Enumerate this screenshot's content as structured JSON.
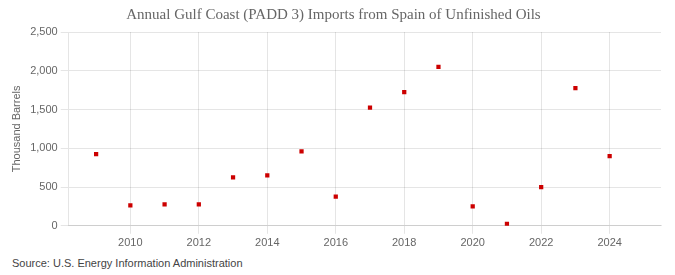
{
  "chart_data": {
    "type": "scatter",
    "title": "Annual Gulf Coast (PADD 3) Imports from Spain of Unfinished Oils",
    "ylabel": "Thousand Barrels",
    "source": "Source: U.S. Energy Information Administration",
    "x": [
      2009,
      2010,
      2011,
      2012,
      2013,
      2014,
      2015,
      2016,
      2017,
      2018,
      2019,
      2020,
      2021,
      2022,
      2023,
      2024
    ],
    "values": [
      925,
      262,
      275,
      275,
      625,
      650,
      960,
      375,
      1525,
      1725,
      2050,
      250,
      25,
      500,
      1775,
      900
    ],
    "color": "#cc0000",
    "marker": "square",
    "grid": true,
    "xlim": [
      2008.2,
      2025.5
    ],
    "xticks": [
      2010,
      2012,
      2014,
      2016,
      2018,
      2020,
      2022,
      2024
    ],
    "ylim": [
      0,
      2500
    ],
    "yticks": [
      0,
      500,
      {
        "value": 1000,
        "label": "1,000"
      },
      {
        "value": 1500,
        "label": "1,500"
      },
      {
        "value": 2000,
        "label": "2,000"
      },
      {
        "value": 2500,
        "label": "2,500"
      }
    ]
  }
}
